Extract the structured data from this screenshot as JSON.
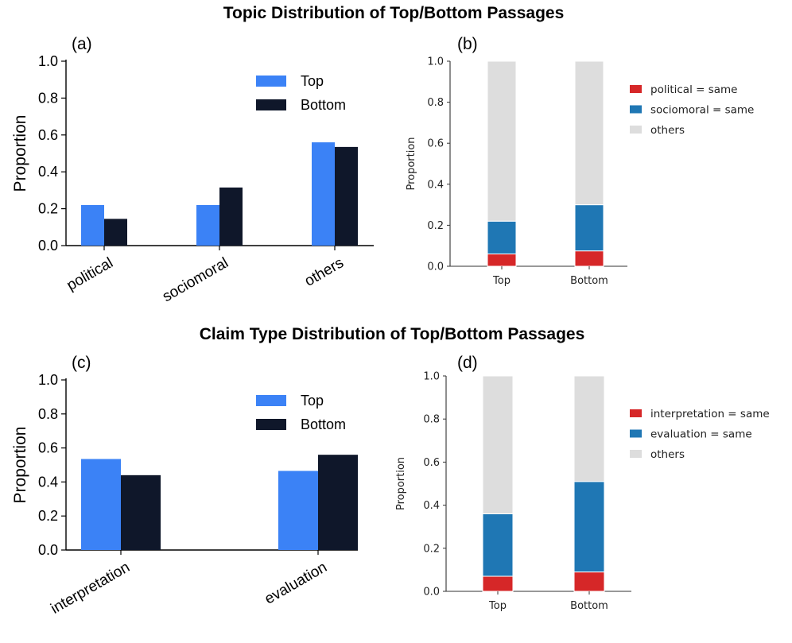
{
  "titles": {
    "top": "Topic Distribution of Top/Bottom Passages",
    "bottom": "Claim Type Distribution of Top/Bottom Passages"
  },
  "colors": {
    "top": "#3b82f6",
    "bottom": "#0f172a",
    "red": "#d62728",
    "blue": "#1f77b4",
    "gray": "#dddddd"
  },
  "chart_data": [
    {
      "id": "a",
      "panel_label": "(a)",
      "type": "bar",
      "categories": [
        "political",
        "sociomoral",
        "others"
      ],
      "series": [
        {
          "name": "Top",
          "values": [
            0.22,
            0.22,
            0.56
          ]
        },
        {
          "name": "Bottom",
          "values": [
            0.145,
            0.315,
            0.535
          ]
        }
      ],
      "ylabel": "Proportion",
      "ylim": [
        0,
        1.0
      ],
      "yticks": [
        "0.0",
        "0.2",
        "0.4",
        "0.6",
        "0.8",
        "1.0"
      ],
      "legend": "upper-right"
    },
    {
      "id": "b",
      "panel_label": "(b)",
      "type": "bar",
      "stacked": true,
      "categories": [
        "Top",
        "Bottom"
      ],
      "series": [
        {
          "name": "political = same",
          "values": [
            0.06,
            0.075
          ]
        },
        {
          "name": "sociomoral = same",
          "values": [
            0.16,
            0.225
          ]
        },
        {
          "name": "others",
          "values": [
            0.78,
            0.7
          ]
        }
      ],
      "ylabel": "Proportion",
      "ylim": [
        0,
        1.0
      ],
      "yticks": [
        "0.0",
        "0.2",
        "0.4",
        "0.6",
        "0.8",
        "1.0"
      ],
      "legend": "right"
    },
    {
      "id": "c",
      "panel_label": "(c)",
      "type": "bar",
      "categories": [
        "interpretation",
        "evaluation"
      ],
      "series": [
        {
          "name": "Top",
          "values": [
            0.535,
            0.465
          ]
        },
        {
          "name": "Bottom",
          "values": [
            0.44,
            0.56
          ]
        }
      ],
      "ylabel": "Proportion",
      "ylim": [
        0,
        1.0
      ],
      "yticks": [
        "0.0",
        "0.2",
        "0.4",
        "0.6",
        "0.8",
        "1.0"
      ],
      "legend": "upper-right"
    },
    {
      "id": "d",
      "panel_label": "(d)",
      "type": "bar",
      "stacked": true,
      "categories": [
        "Top",
        "Bottom"
      ],
      "series": [
        {
          "name": "interpretation = same",
          "values": [
            0.07,
            0.09
          ]
        },
        {
          "name": "evaluation = same",
          "values": [
            0.29,
            0.42
          ]
        },
        {
          "name": "others",
          "values": [
            0.64,
            0.49
          ]
        }
      ],
      "ylabel": "Proportion",
      "ylim": [
        0,
        1.0
      ],
      "yticks": [
        "0.0",
        "0.2",
        "0.4",
        "0.6",
        "0.8",
        "1.0"
      ],
      "legend": "right"
    }
  ]
}
